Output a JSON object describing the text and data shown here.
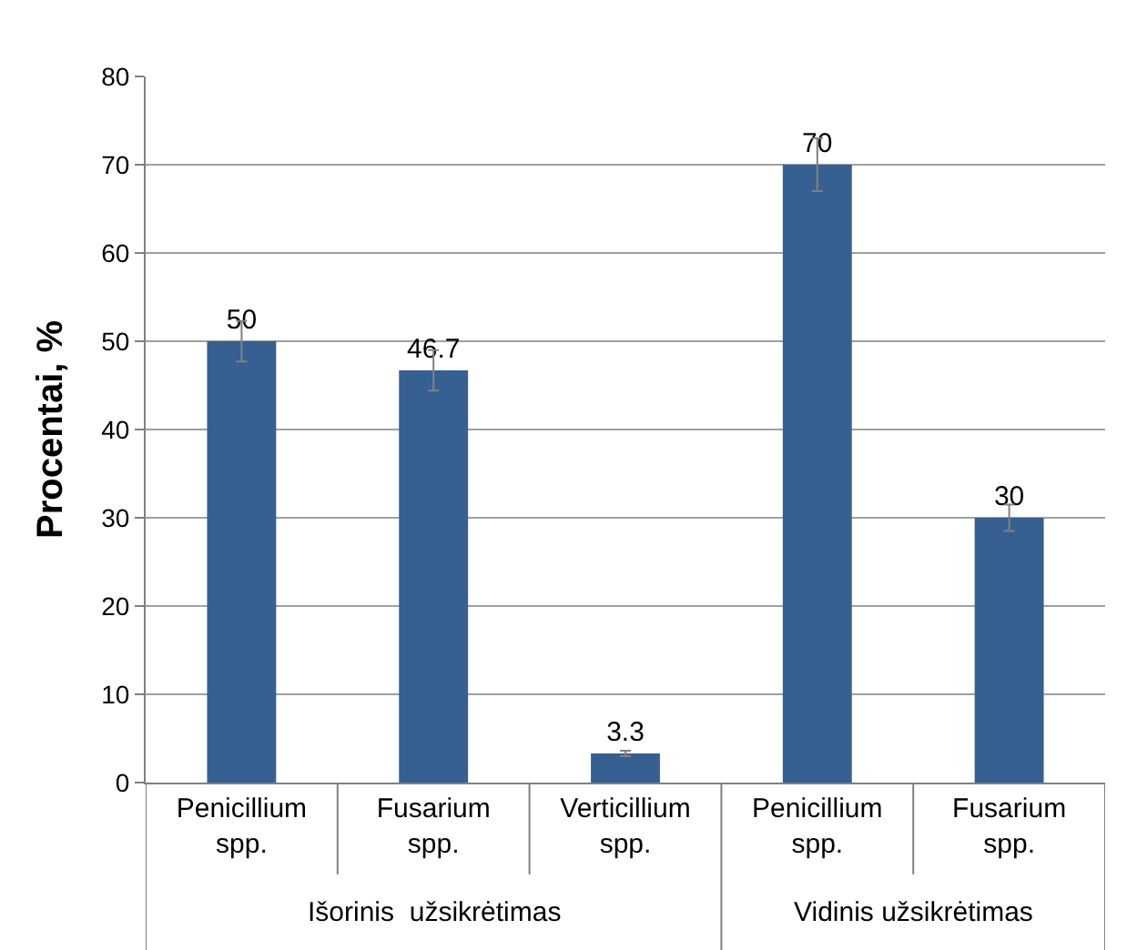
{
  "chart_data": {
    "type": "bar",
    "ylabel": "Procentai, %",
    "categories": [
      "Penicillium spp.",
      "Fusarium spp.",
      "Verticillium spp.",
      "Penicillium spp.",
      "Fusarium spp."
    ],
    "values": [
      50,
      46.7,
      3.3,
      70,
      30
    ],
    "errors": [
      2.3,
      2.3,
      0.3,
      3,
      1.5
    ],
    "color": "#376092",
    "ylim": [
      0,
      80
    ],
    "yticks": [
      0,
      10,
      20,
      30,
      40,
      50,
      60,
      70,
      80
    ],
    "grid": "y",
    "data_labels": true,
    "legend": false,
    "annotations": [
      "Išorinis  užsikrėtimas",
      "Vidinis užsikrėtimas"
    ]
  }
}
